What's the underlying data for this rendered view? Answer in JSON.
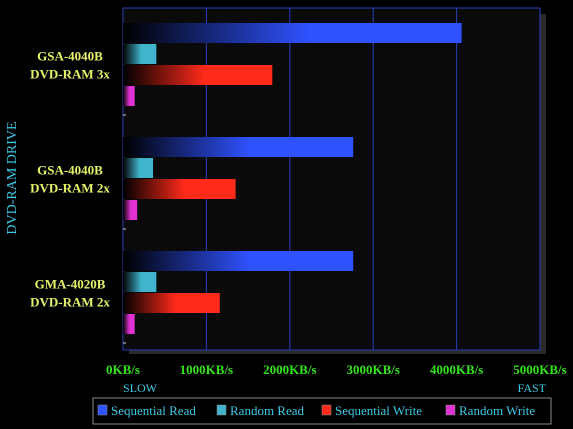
{
  "colors": {
    "background": "#000000",
    "plot_background": "#0a0a0a",
    "shadow": "#2a2a2a",
    "grid": "#2a3fb8",
    "axis_title": "#3ec9e6",
    "category_label": "#e6f26a",
    "tick_label": "#33e61a",
    "range_label": "#3ec9e6",
    "legend_text": "#3ec9e6",
    "legend_border": "#8a8a8a"
  },
  "chart_data": {
    "type": "bar",
    "orientation": "horizontal",
    "title": "",
    "ylabel": "DVD-RAM DRIVE",
    "xlabel": "",
    "xlim": [
      0,
      5000
    ],
    "grid": true,
    "legend_position": "bottom",
    "categories": [
      [
        "GSA-4040B",
        "DVD-RAM 3x"
      ],
      [
        "GSA-4040B",
        "DVD-RAM 2x"
      ],
      [
        "GMA-4020B",
        "DVD-RAM 2x"
      ]
    ],
    "x_tick_labels": [
      "0KB/s",
      "1000KB/s",
      "2000KB/s",
      "3000KB/s",
      "4000KB/s",
      "5000KB/s"
    ],
    "x_range_labels": {
      "min": "SLOW",
      "max": "FAST"
    },
    "series": [
      {
        "name": "Sequential Read",
        "color": "#2f52ff",
        "values": [
          4060,
          2760,
          2760
        ]
      },
      {
        "name": "Random Read",
        "color": "#3fb4cc",
        "values": [
          400,
          360,
          400
        ]
      },
      {
        "name": "Sequential Write",
        "color": "#ff2a1a",
        "values": [
          1790,
          1350,
          1160
        ]
      },
      {
        "name": "Random Write",
        "color": "#e032d2",
        "values": [
          140,
          170,
          140
        ]
      }
    ]
  }
}
